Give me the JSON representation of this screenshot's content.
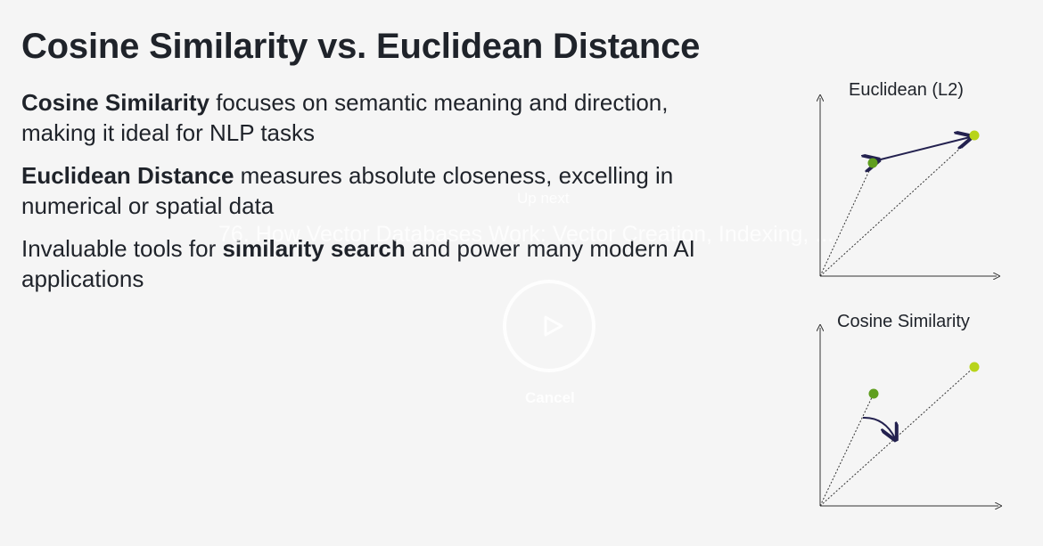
{
  "slide": {
    "title": "Cosine Similarity vs. Euclidean Distance",
    "bullets": [
      {
        "bold": "Cosine Similarity",
        "pre": "",
        "post": " focuses on semantic meaning and direction, making it ideal for NLP tasks"
      },
      {
        "bold": "Euclidean Distance",
        "pre": "",
        "post": " measures absolute closeness, excelling in numerical or spatial data"
      },
      {
        "bold": "similarity search",
        "pre": "Invaluable tools for ",
        "post": " and power many modern AI applications"
      }
    ],
    "diagrams": {
      "euclidean_title": "Euclidean (L2)",
      "cosine_title": "Cosine Similarity"
    },
    "colors": {
      "point_dark": "#5f9e1f",
      "point_light": "#b8d41a",
      "arrow": "#23214f",
      "axis": "#333333",
      "text": "#1f232a"
    }
  },
  "overlay": {
    "up_next_label": "Up next",
    "next_video_title": "76. How Vector Databases Work: Vector Creation, Indexing, ...",
    "play_icon": "play-icon",
    "cancel_label": "Cancel"
  }
}
